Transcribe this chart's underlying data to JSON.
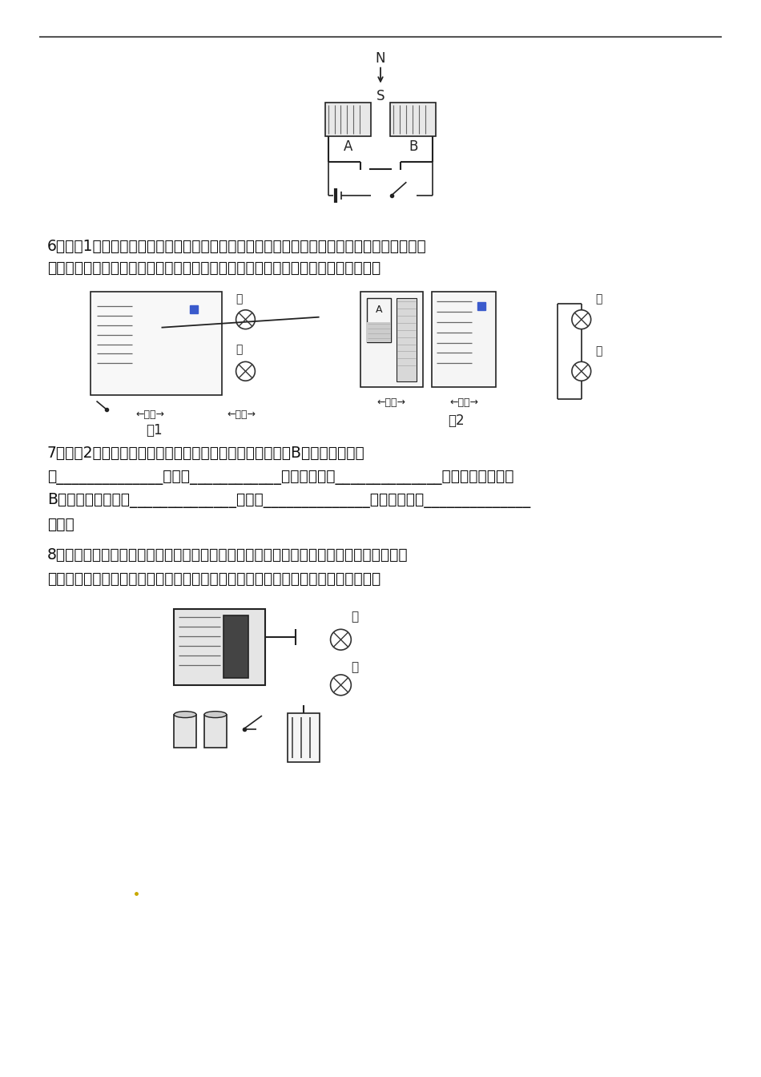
{
  "bg_color": "#ffffff",
  "text_color": "#111111",
  "dark_color": "#222222",
  "page_width": 9.5,
  "page_height": 13.44,
  "q6_line1": "6、如图1是用电磁继电器控制电灯的实验装置图，要想在控制电路的开关闭合时红灯亮绻灯不",
  "q6_line2": "亮，开关断开时绻灯亮红灯不亮，请用笔画线代表导线将所给器材按要求连接起来。",
  "q7_line1": "7、如图2是一种水位自动报警器的原理图。当水位没有达到B金属时，电磁铁",
  "q7_line2": "中______________电流，____________灯电路接通，______________灯亮。当水位达到",
  "q7_line3": "B金属时，电磁铁中______________电流，______________灯电路接通，______________",
  "q7_line4": "灯亮。",
  "q8_line1": "8、图是用电磁继电器控制电灯的实验装置图，要想在控制电路的开关闭合时甲灯亮乙灯不",
  "q8_line2": "亮，开关断开时乙灯亮甲灯不亮，请用笔画线代表导线将所给器材按要求连接起来。"
}
